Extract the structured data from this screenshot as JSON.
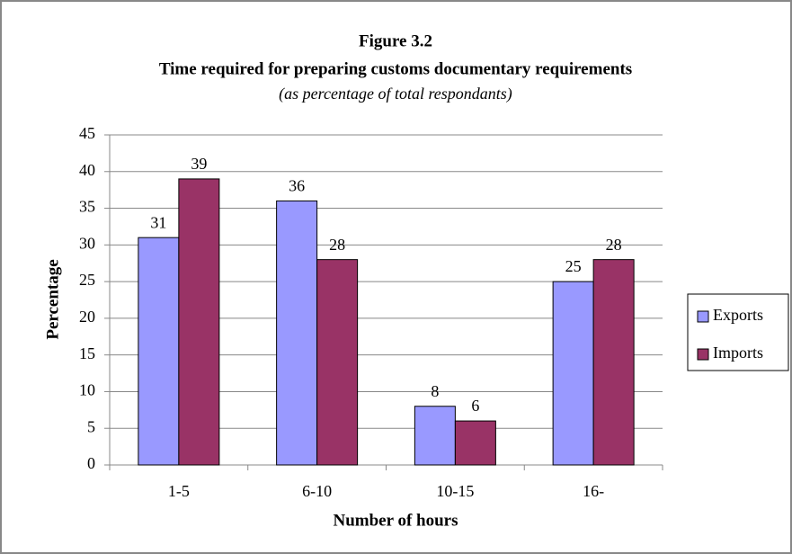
{
  "chart_data": {
    "type": "bar",
    "title": "Figure 3.2",
    "subtitle": "Time required for preparing customs documentary requirements",
    "note": "(as percentage of total respondants)",
    "x_label": "Number of hours",
    "y_label": "Percentage",
    "categories": [
      "1-5",
      "6-10",
      "10-15",
      "16-"
    ],
    "series": [
      {
        "name": "Exports",
        "color": "#9999ff",
        "values": [
          31,
          36,
          8,
          25
        ]
      },
      {
        "name": "Imports",
        "color": "#993366",
        "values": [
          39,
          28,
          6,
          28
        ]
      }
    ],
    "ylim": [
      0,
      45
    ],
    "yticks": [
      0,
      5,
      10,
      15,
      20,
      25,
      30,
      35,
      40,
      45
    ],
    "grid": true,
    "legend": "right"
  }
}
